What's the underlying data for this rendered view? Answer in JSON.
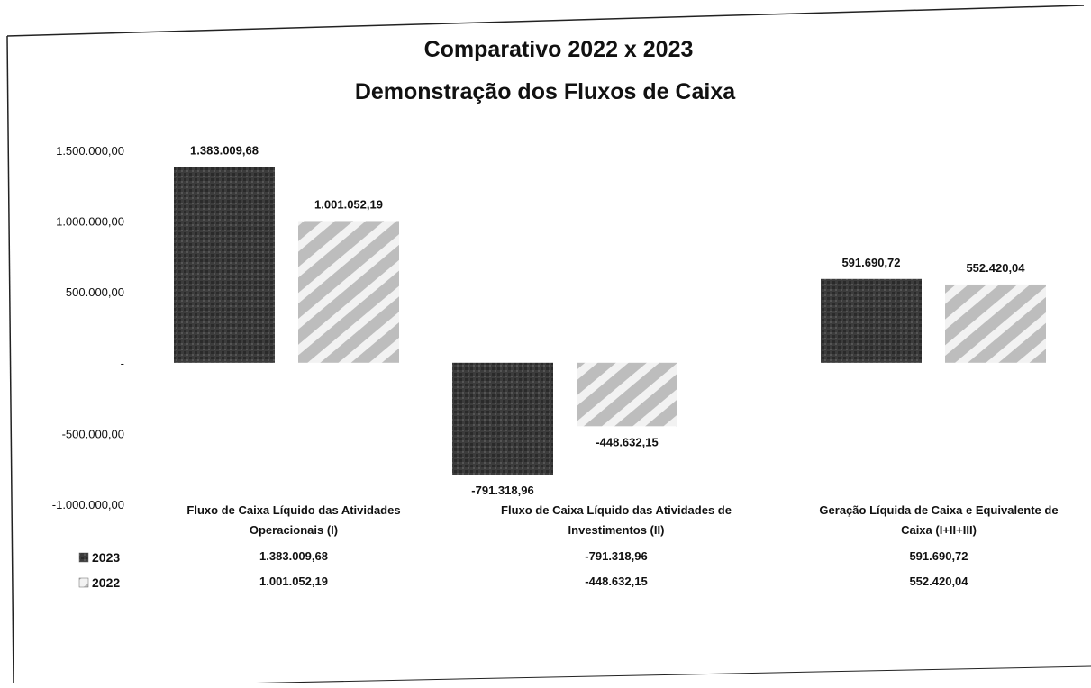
{
  "chart_data": {
    "type": "bar",
    "title": [
      "Comparativo 2022 x 2023",
      "Demonstração dos Fluxos de Caixa"
    ],
    "xlabel": "",
    "ylabel": "",
    "ylim": [
      -1000000,
      1500000
    ],
    "yticks": [
      {
        "value": 1500000,
        "label": "1.500.000,00"
      },
      {
        "value": 1000000,
        "label": "1.000.000,00"
      },
      {
        "value": 500000,
        "label": "500.000,00"
      },
      {
        "value": 0,
        "label": "-"
      },
      {
        "value": -500000,
        "label": "-500.000,00"
      },
      {
        "value": -1000000,
        "label": "-1.000.000,00"
      }
    ],
    "grid": false,
    "legend": "bottom-left data table",
    "categories": [
      [
        "Fluxo de Caixa Líquido das Atividades",
        "Operacionais (I)"
      ],
      [
        "Fluxo de Caixa Líquido das Atividades de",
        "Investimentos (II)"
      ],
      [
        "Geração Líquida de Caixa e Equivalente de",
        "Caixa (I+II+III)"
      ]
    ],
    "series": [
      {
        "name": "2023",
        "color": "#3a3a3a",
        "pattern": "solid-dark",
        "values": [
          1383009.68,
          -791318.96,
          591690.72
        ],
        "labels": [
          "1.383.009,68",
          "-791.318,96",
          "591.690,72"
        ]
      },
      {
        "name": "2022",
        "color": "#b5b5b5",
        "pattern": "diagonal-stripes",
        "values": [
          1001052.19,
          -448632.15,
          552420.04
        ],
        "labels": [
          "1.001.052,19",
          "-448.632,15",
          "552.420,04"
        ]
      }
    ]
  }
}
